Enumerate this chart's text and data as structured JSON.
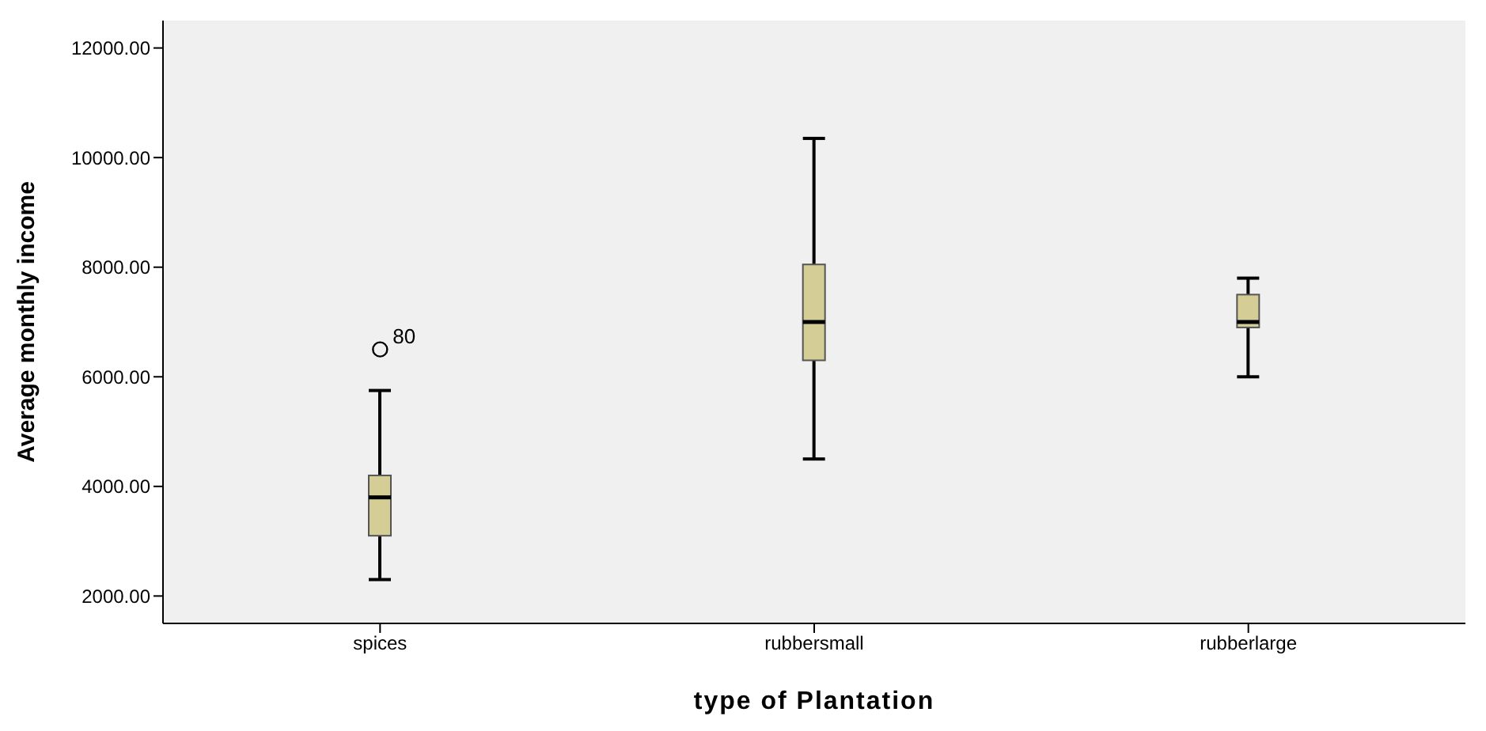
{
  "chart_data": {
    "type": "box",
    "xlabel": "type of Plantation",
    "ylabel": "Average monthly income",
    "categories": [
      "spices",
      "rubbersmall",
      "rubberlarge"
    ],
    "boxes": [
      {
        "low": 2300,
        "q1": 3100,
        "median": 3800,
        "q3": 4200,
        "high": 5750,
        "outliers": [
          6500
        ]
      },
      {
        "low": 4500,
        "q1": 6300,
        "median": 7000,
        "q3": 8050,
        "high": 10350
      },
      {
        "low": 6000,
        "q1": 6900,
        "median": 7000,
        "q3": 7500,
        "high": 7800
      }
    ],
    "color": "#d4cd95",
    "ylim": [
      1500,
      12500
    ],
    "yticks": [
      {
        "value": 2000,
        "label": "2000.00"
      },
      {
        "value": 4000,
        "label": "4000.00"
      },
      {
        "value": 6000,
        "label": "6000.00"
      },
      {
        "value": 8000,
        "label": "8000.00"
      },
      {
        "value": 10000,
        "label": "10000.00"
      },
      {
        "value": 12000,
        "label": "12000.00"
      }
    ],
    "annotations": [
      "80"
    ],
    "marker": "circle",
    "grid": false,
    "legend": false
  }
}
